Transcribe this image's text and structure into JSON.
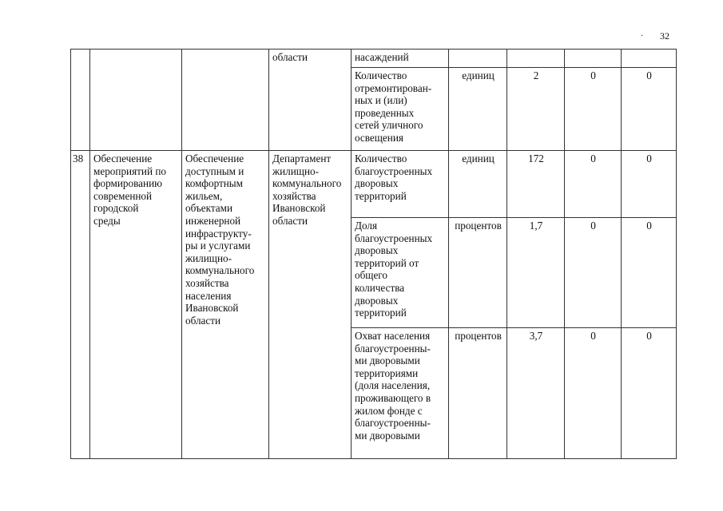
{
  "page_number": "32",
  "rows": [
    {
      "num": "",
      "task": "",
      "result": "",
      "executor": "области",
      "indicator": "насаждений",
      "unit": "",
      "v1": "",
      "v2": "",
      "v3": ""
    },
    {
      "indicator": "Количество\nотремонтирован-\nных и (или)\nпроведенных\nсетей уличного\nосвещения",
      "unit": "единиц",
      "v1": "2",
      "v2": "0",
      "v3": "0"
    },
    {
      "num": "38",
      "task": "Обеспечение\nмероприятий по\nформированию\nсовременной\nгородской\nсреды",
      "result": "Обеспечение\nдоступным и\nкомфортным\nжильем,\nобъектами\nинженерной\nинфраструкту-\nры и услугами\nжилищно-\nкоммунального\nхозяйства\nнаселения\nИвановской\nобласти",
      "executor": "Департамент\nжилищно-\nкоммунального\nхозяйства\nИвановской\nобласти",
      "indicator": "Количество\nблагоустроенных\nдворовых\nтерриторий",
      "unit": "единиц",
      "v1": "172",
      "v2": "0",
      "v3": "0"
    },
    {
      "indicator": "Доля\nблагоустроенных\nдворовых\nтерриторий от\nобщего\nколичества\nдворовых\nтерриторий",
      "unit": "процентов",
      "v1": "1,7",
      "v2": "0",
      "v3": "0"
    },
    {
      "indicator": "Охват населения\nблагоустроенны-\nми дворовыми\nтерриториями\n(доля населения,\nпроживающего в\nжилом фонде с\nблагоустроенны-\nми дворовыми",
      "unit": "процентов",
      "v1": "3,7",
      "v2": "0",
      "v3": "0"
    }
  ]
}
